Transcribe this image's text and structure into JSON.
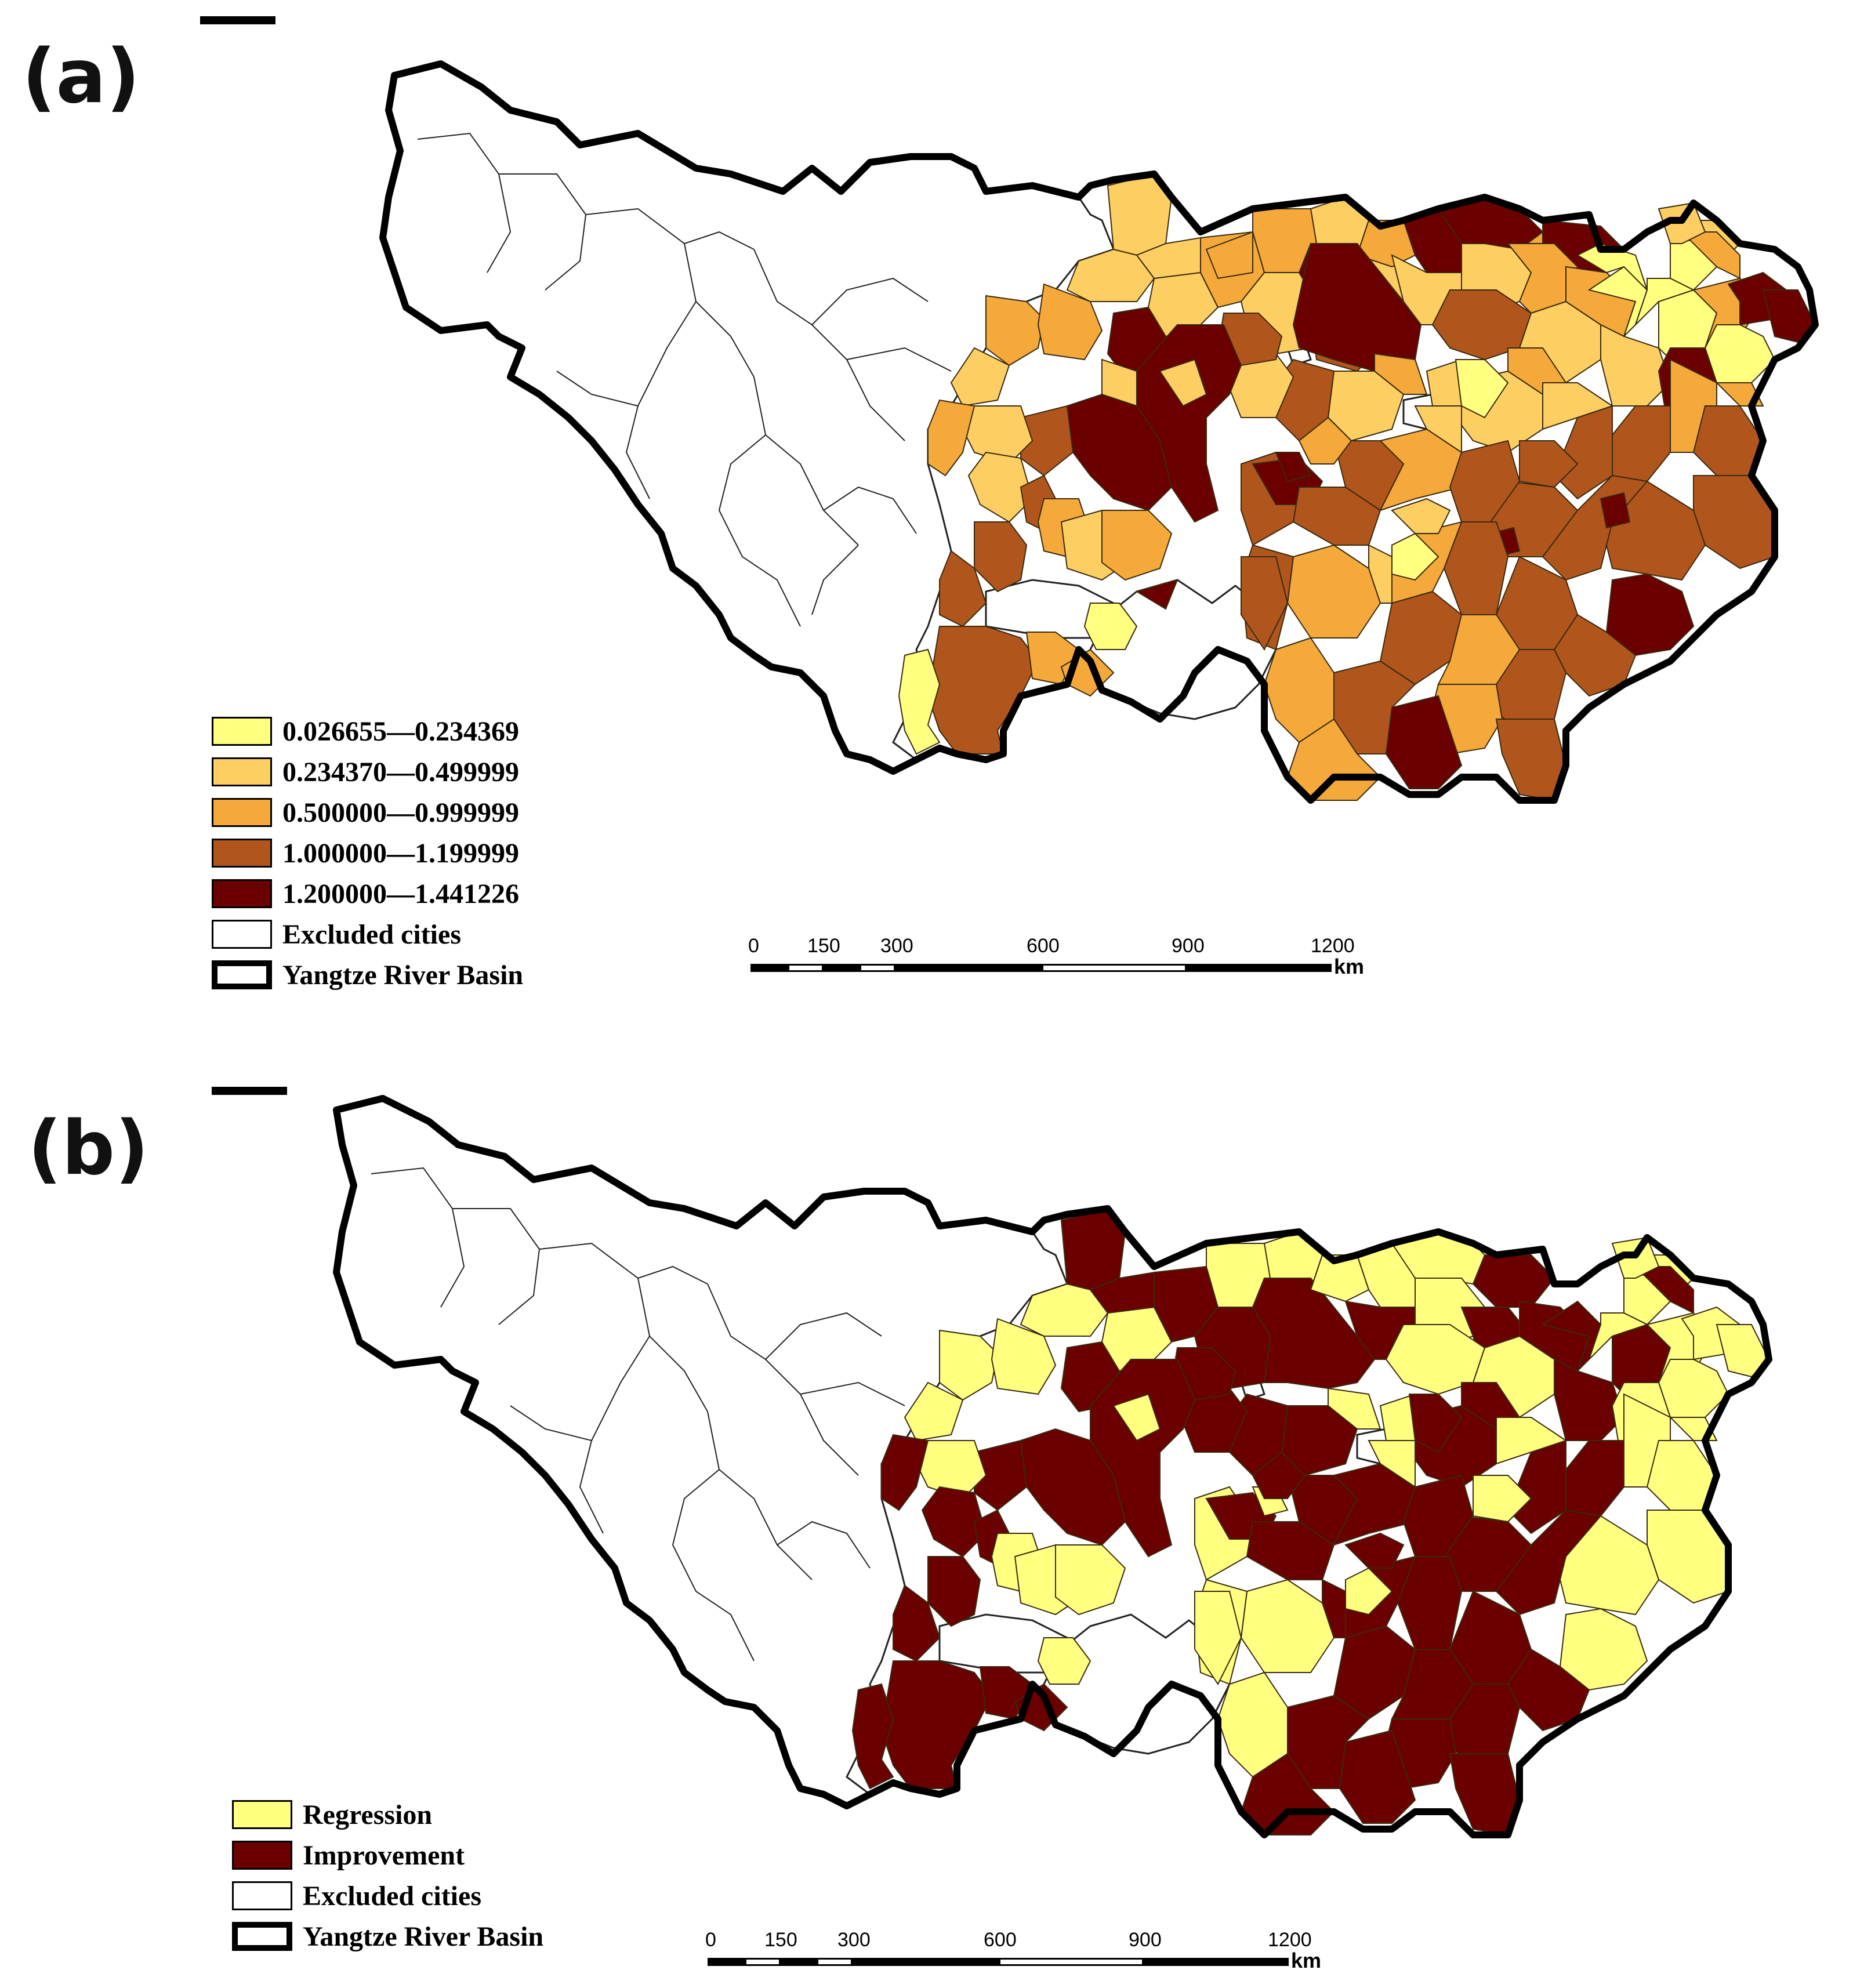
{
  "colors": {
    "c1": "#FFFF80",
    "c2": "#FDCF62",
    "c3": "#F4A93A",
    "c4": "#B0561C",
    "c5": "#6B0000",
    "excluded": "#FFFFFF",
    "regression": "#FFFF80",
    "improvement": "#6B0000"
  },
  "panel_a": {
    "label": "(a)",
    "legend": [
      {
        "label": "0.026655—0.234369",
        "color": "#FFFF80"
      },
      {
        "label": "0.234370—0.499999",
        "color": "#FDCF62"
      },
      {
        "label": "0.500000—0.999999",
        "color": "#F4A93A"
      },
      {
        "label": "1.000000—1.199999",
        "color": "#B0561C"
      },
      {
        "label": "1.200000—1.441226",
        "color": "#6B0000"
      },
      {
        "label": "Excluded cities",
        "color": "#FFFFFF"
      },
      {
        "label": "Yangtze River Basin",
        "color": "#FFFFFF",
        "type": "basin-outline"
      }
    ],
    "scale_ticks": [
      "0",
      "150",
      "300",
      "600",
      "900",
      "1200"
    ],
    "scale_unit": "km"
  },
  "panel_b": {
    "label": "(b)",
    "legend": [
      {
        "label": "Regression",
        "color": "#FFFF80"
      },
      {
        "label": "Improvement",
        "color": "#6B0000"
      },
      {
        "label": "Excluded cities",
        "color": "#FFFFFF"
      },
      {
        "label": "Yangtze River Basin",
        "color": "#FFFFFF",
        "type": "basin-outline"
      }
    ],
    "scale_ticks": [
      "0",
      "150",
      "300",
      "600",
      "900",
      "1200"
    ],
    "scale_unit": "km"
  }
}
